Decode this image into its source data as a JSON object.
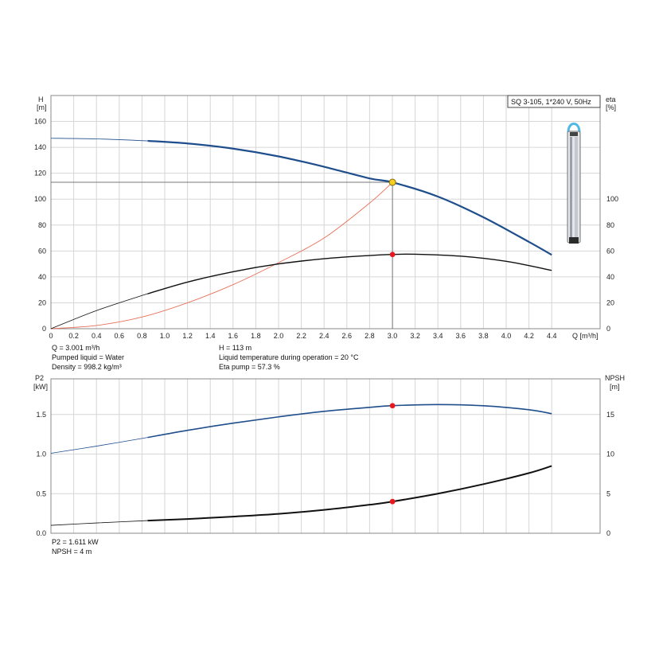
{
  "title": "SQ 3-105, 1*240 V, 50Hz",
  "colors": {
    "head": "#1f4e8c",
    "efficiency": "#111111",
    "system": "#e8705a",
    "p2": "#1f4e8c",
    "npsh": "#111111",
    "duty_point": "#e8191e",
    "intersection": "#f6d21e",
    "grid": "#d6d6d6",
    "pump_cap": "#4fb8e6"
  },
  "info_top": {
    "flow": "Q = 3.001 m³/h",
    "liquid": "Pumped liquid = Water",
    "density": "Density = 998.2 kg/m³",
    "head": "H = 113 m",
    "temperature": "Liquid temperature during operation = 20 °C",
    "eta": "Eta pump = 57.3 %"
  },
  "info_bottom": {
    "p2": "P2 = 1.611 kW",
    "npsh": "NPSH = 4 m"
  },
  "chart_data": [
    {
      "type": "line",
      "title": "SQ 3-105, 1*240 V, 50Hz",
      "xlabel": "Q [m³/h]",
      "ylabel_lines": [
        "H",
        "[m]"
      ],
      "ylabel_right_lines": [
        "eta",
        "[%]"
      ],
      "xlim": [
        0,
        4.4
      ],
      "ylim": [
        0,
        170
      ],
      "xticks": [
        0,
        0.2,
        0.4,
        0.6,
        0.8,
        1.0,
        1.2,
        1.4,
        1.6,
        1.8,
        2.0,
        2.2,
        2.4,
        2.6,
        2.8,
        3.0,
        3.2,
        3.4,
        3.6,
        3.8,
        4.0,
        4.2,
        4.4
      ],
      "xtick_labels": [
        "0",
        "0.2",
        "0.4",
        "0.6",
        "0.8",
        "1.0",
        "1.2",
        "1.4",
        "1.6",
        "1.8",
        "2.0",
        "2.2",
        "2.4",
        "2.6",
        "2.8",
        "3.0",
        "3.2",
        "3.4",
        "3.6",
        "3.8",
        "4.0",
        "4.2",
        "4.4"
      ],
      "yticks": [
        0,
        20,
        40,
        60,
        80,
        100,
        120,
        140,
        160
      ],
      "yticks_right": [
        0,
        20,
        40,
        60,
        80,
        100
      ],
      "grid": true,
      "series": [
        {
          "key": "head",
          "x": [
            0,
            0.4,
            0.85,
            1.2,
            1.6,
            2.0,
            2.4,
            2.8,
            3.0,
            3.4,
            3.8,
            4.2,
            4.4
          ],
          "y": [
            147,
            146.5,
            145,
            143,
            139,
            133,
            125,
            116,
            113,
            102,
            86,
            67,
            57
          ],
          "thin_until": 0.85
        },
        {
          "key": "efficiency",
          "x": [
            0,
            0.4,
            0.85,
            1.2,
            1.6,
            2.0,
            2.4,
            2.8,
            3.0,
            3.2,
            3.6,
            4.0,
            4.4
          ],
          "y": [
            0,
            14,
            27,
            36,
            44,
            50,
            54,
            56.5,
            57.3,
            57.5,
            56,
            52,
            45
          ],
          "thin_until": 0.85
        },
        {
          "key": "system",
          "x": [
            0,
            0.4,
            0.8,
            1.2,
            1.6,
            2.0,
            2.4,
            2.8,
            3.0
          ],
          "y": [
            0,
            2.5,
            9,
            20,
            34,
            51,
            70,
            97,
            113
          ]
        }
      ],
      "duty_point": {
        "x": 3.001,
        "head": 113,
        "eta": 57.3
      }
    },
    {
      "type": "line",
      "ylabel_lines": [
        "P2",
        "[kW]"
      ],
      "ylabel_right_lines": [
        "NPSH",
        "[m]"
      ],
      "xlim": [
        0,
        4.4
      ],
      "ylim": [
        0,
        1.75
      ],
      "yticks": [
        0,
        0.5,
        1.0,
        1.5
      ],
      "ytick_labels": [
        "0.0",
        "0.5",
        "1.0",
        "1.5"
      ],
      "yticks_right": [
        0,
        5,
        10,
        15
      ],
      "ytick_labels_right": [
        "0",
        "5",
        "10",
        "15"
      ],
      "grid": true,
      "series": [
        {
          "key": "p2",
          "x": [
            0,
            0.4,
            0.85,
            1.2,
            1.6,
            2.0,
            2.4,
            2.8,
            3.0,
            3.4,
            3.8,
            4.2,
            4.4
          ],
          "y": [
            1.01,
            1.1,
            1.21,
            1.3,
            1.39,
            1.47,
            1.54,
            1.59,
            1.611,
            1.625,
            1.61,
            1.56,
            1.51
          ],
          "thin_until": 0.85
        },
        {
          "key": "npsh",
          "x": [
            0,
            0.4,
            0.85,
            1.2,
            1.6,
            2.0,
            2.4,
            2.8,
            3.0,
            3.4,
            3.8,
            4.2,
            4.4
          ],
          "y": [
            1.0,
            1.3,
            1.6,
            1.8,
            2.1,
            2.45,
            2.95,
            3.6,
            4.0,
            5.0,
            6.2,
            7.6,
            8.5
          ],
          "thin_until": 0.85,
          "unit_scale": 10
        }
      ],
      "duty_point": {
        "x": 3.001,
        "p2": 1.611,
        "npsh": 4
      }
    }
  ]
}
